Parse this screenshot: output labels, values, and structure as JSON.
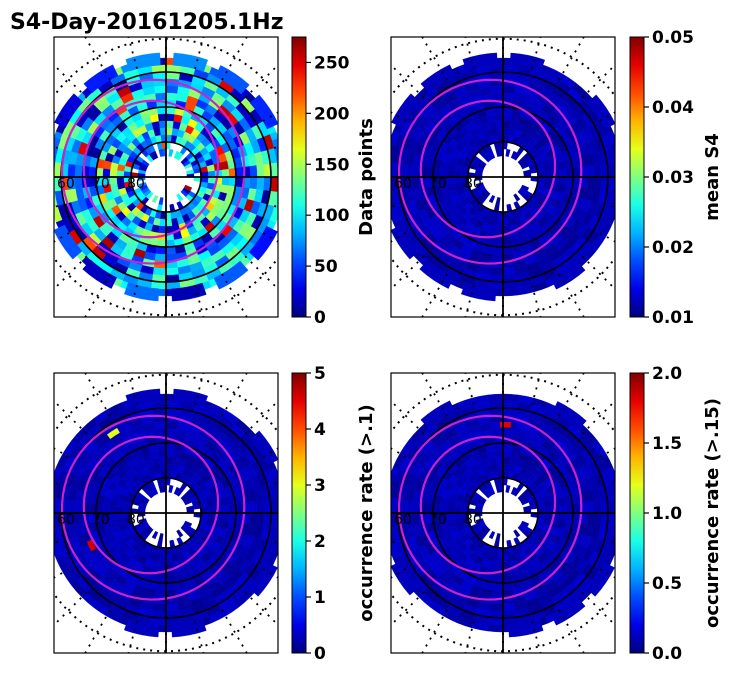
{
  "title": "S4-Day-20161205.1Hz",
  "chart_data": [
    {
      "type": "heatmap",
      "projection": "polar",
      "panel": "top-left",
      "colormap": "jet",
      "colorbar_label": "Data points",
      "range": [
        0,
        275
      ],
      "ticks": [
        "0",
        "50",
        "100",
        "150",
        "200",
        "250"
      ],
      "tick_values": [
        0,
        50,
        100,
        150,
        200,
        250
      ],
      "lat_labels": [
        "60",
        "70",
        "80"
      ],
      "field": "counts"
    },
    {
      "type": "heatmap",
      "projection": "polar",
      "panel": "top-right",
      "colormap": "jet",
      "colorbar_label": "mean S4",
      "range": [
        0.01,
        0.05
      ],
      "ticks": [
        "0.01",
        "0.02",
        "0.03",
        "0.04",
        "0.05"
      ],
      "tick_values": [
        0.01,
        0.02,
        0.03,
        0.04,
        0.05
      ],
      "lat_labels": [
        "60",
        "70",
        "80"
      ],
      "field": "low"
    },
    {
      "type": "heatmap",
      "projection": "polar",
      "panel": "bottom-left",
      "colormap": "jet",
      "colorbar_label": "occurrence rate (>.1)",
      "range": [
        0,
        5
      ],
      "ticks": [
        "0",
        "1",
        "2",
        "3",
        "4",
        "5"
      ],
      "tick_values": [
        0,
        1,
        2,
        3,
        4,
        5
      ],
      "lat_labels": [
        "60",
        "70",
        "80"
      ],
      "field": "low",
      "hotspots": [
        {
          "lat": 66,
          "mlt_deg": 200,
          "value": 4.6
        },
        {
          "lat": 62,
          "mlt_deg": 120,
          "value": 3.0
        }
      ]
    },
    {
      "type": "heatmap",
      "projection": "polar",
      "panel": "bottom-right",
      "colormap": "jet",
      "colorbar_label": "occurrence rate (>.15)",
      "range": [
        0.0,
        2.0
      ],
      "ticks": [
        "0.0",
        "0.5",
        "1.0",
        "1.5",
        "2.0"
      ],
      "tick_values": [
        0.0,
        0.5,
        1.0,
        1.5,
        2.0
      ],
      "lat_labels": [
        "60",
        "70",
        "80"
      ],
      "field": "low",
      "hotspots": [
        {
          "lat": 64,
          "mlt_deg": 85,
          "value": 1.8
        }
      ]
    }
  ],
  "colors": {
    "contour": "#cc22cc",
    "background_fill": "#00008f",
    "axis": "#000000"
  }
}
